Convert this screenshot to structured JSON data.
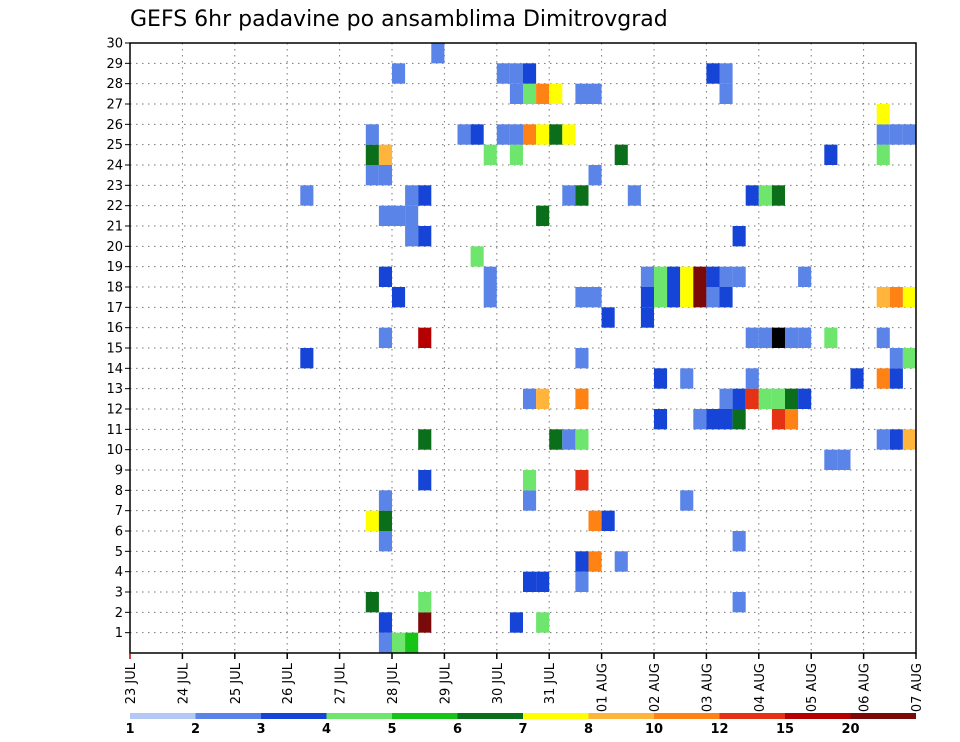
{
  "chart_data": {
    "type": "heatmap",
    "title": "GEFS 6hr padavine po ansamblima Dimitrovgrad",
    "x_tick_labels": [
      "23 JUL",
      "24 JUL",
      "25 JUL",
      "26 JUL",
      "27 JUL",
      "28 JUL",
      "29 JUL",
      "30 JUL",
      "31 JUL",
      "01 AUG",
      "02 AUG",
      "03 AUG",
      "04 AUG",
      "05 AUG",
      "06 AUG",
      "07 AUG"
    ],
    "y_tick_labels": [
      "1",
      "2",
      "3",
      "4",
      "5",
      "6",
      "7",
      "8",
      "9",
      "10",
      "11",
      "12",
      "13",
      "14",
      "15",
      "16",
      "17",
      "18",
      "19",
      "20",
      "21",
      "22",
      "23",
      "24",
      "25",
      "26",
      "27",
      "28",
      "29",
      "30"
    ],
    "x_range_hours": [
      0,
      360
    ],
    "time_step_hours": 6,
    "y_range": [
      0,
      30
    ],
    "grid": true,
    "colorbar": {
      "levels": [
        "1",
        "2",
        "3",
        "4",
        "5",
        "6",
        "7",
        "8",
        "10",
        "12",
        "15",
        "20"
      ],
      "colors": [
        "#b4c8f4",
        "#5a84e8",
        "#1644d6",
        "#6ee66e",
        "#16c416",
        "#0b6e1a",
        "#ffff00",
        "#ffb43c",
        "#ff8214",
        "#e63214",
        "#b40000",
        "#7a0a0a"
      ]
    },
    "cells": [
      [
        114,
        0,
        1
      ],
      [
        120,
        0,
        3
      ],
      [
        126,
        0,
        4
      ],
      [
        114,
        1,
        2
      ],
      [
        132,
        1,
        11
      ],
      [
        174,
        1,
        2
      ],
      [
        186,
        1,
        3
      ],
      [
        108,
        2,
        5
      ],
      [
        132,
        2,
        3
      ],
      [
        276,
        2,
        1
      ],
      [
        180,
        3,
        2
      ],
      [
        186,
        3,
        2
      ],
      [
        204,
        3,
        1
      ],
      [
        204,
        4,
        2
      ],
      [
        210,
        4,
        8
      ],
      [
        222,
        4,
        1
      ],
      [
        114,
        5,
        1
      ],
      [
        276,
        5,
        1
      ],
      [
        108,
        6,
        6
      ],
      [
        114,
        6,
        5
      ],
      [
        210,
        6,
        8
      ],
      [
        216,
        6,
        2
      ],
      [
        114,
        7,
        1
      ],
      [
        180,
        7,
        1
      ],
      [
        252,
        7,
        1
      ],
      [
        132,
        8,
        2
      ],
      [
        180,
        8,
        3
      ],
      [
        204,
        8,
        9
      ],
      [
        318,
        9,
        1
      ],
      [
        324,
        9,
        1
      ],
      [
        132,
        10,
        5
      ],
      [
        192,
        10,
        5
      ],
      [
        198,
        10,
        1
      ],
      [
        204,
        10,
        3
      ],
      [
        342,
        10,
        1
      ],
      [
        348,
        10,
        2
      ],
      [
        354,
        10,
        7
      ],
      [
        240,
        11,
        2
      ],
      [
        258,
        11,
        1
      ],
      [
        264,
        11,
        2
      ],
      [
        270,
        11,
        2
      ],
      [
        276,
        11,
        5
      ],
      [
        294,
        11,
        9
      ],
      [
        300,
        11,
        8
      ],
      [
        180,
        12,
        1
      ],
      [
        186,
        12,
        7
      ],
      [
        204,
        12,
        8
      ],
      [
        270,
        12,
        1
      ],
      [
        276,
        12,
        2
      ],
      [
        282,
        12,
        9
      ],
      [
        288,
        12,
        3
      ],
      [
        294,
        12,
        3
      ],
      [
        300,
        12,
        5
      ],
      [
        306,
        12,
        2
      ],
      [
        240,
        13,
        2
      ],
      [
        252,
        13,
        1
      ],
      [
        282,
        13,
        1
      ],
      [
        330,
        13,
        2
      ],
      [
        342,
        13,
        8
      ],
      [
        348,
        13,
        2
      ],
      [
        78,
        14,
        2
      ],
      [
        204,
        14,
        1
      ],
      [
        348,
        14,
        1
      ],
      [
        354,
        14,
        3
      ],
      [
        114,
        15,
        1
      ],
      [
        132,
        15,
        10
      ],
      [
        282,
        15,
        1
      ],
      [
        288,
        15,
        1
      ],
      [
        294,
        15,
        12
      ],
      [
        300,
        15,
        1
      ],
      [
        306,
        15,
        1
      ],
      [
        318,
        15,
        3
      ],
      [
        342,
        15,
        1
      ],
      [
        216,
        16,
        2
      ],
      [
        234,
        16,
        2
      ],
      [
        120,
        17,
        2
      ],
      [
        162,
        17,
        1
      ],
      [
        204,
        17,
        1
      ],
      [
        210,
        17,
        1
      ],
      [
        234,
        17,
        2
      ],
      [
        240,
        17,
        3
      ],
      [
        246,
        17,
        2
      ],
      [
        252,
        17,
        6
      ],
      [
        258,
        17,
        11
      ],
      [
        264,
        17,
        1
      ],
      [
        270,
        17,
        2
      ],
      [
        342,
        17,
        7
      ],
      [
        348,
        17,
        8
      ],
      [
        354,
        17,
        6
      ],
      [
        114,
        18,
        2
      ],
      [
        162,
        18,
        1
      ],
      [
        234,
        18,
        1
      ],
      [
        240,
        18,
        3
      ],
      [
        246,
        18,
        2
      ],
      [
        252,
        18,
        6
      ],
      [
        258,
        18,
        11
      ],
      [
        264,
        18,
        2
      ],
      [
        270,
        18,
        1
      ],
      [
        276,
        18,
        1
      ],
      [
        306,
        18,
        1
      ],
      [
        156,
        19,
        3
      ],
      [
        126,
        20,
        1
      ],
      [
        132,
        20,
        2
      ],
      [
        276,
        20,
        2
      ],
      [
        114,
        21,
        1
      ],
      [
        120,
        21,
        1
      ],
      [
        126,
        21,
        1
      ],
      [
        186,
        21,
        5
      ],
      [
        78,
        22,
        1
      ],
      [
        126,
        22,
        1
      ],
      [
        132,
        22,
        2
      ],
      [
        198,
        22,
        1
      ],
      [
        204,
        22,
        5
      ],
      [
        228,
        22,
        1
      ],
      [
        282,
        22,
        2
      ],
      [
        288,
        22,
        3
      ],
      [
        294,
        22,
        5
      ],
      [
        108,
        23,
        1
      ],
      [
        114,
        23,
        1
      ],
      [
        210,
        23,
        1
      ],
      [
        108,
        24,
        5
      ],
      [
        114,
        24,
        7
      ],
      [
        162,
        24,
        3
      ],
      [
        174,
        24,
        3
      ],
      [
        222,
        24,
        5
      ],
      [
        318,
        24,
        2
      ],
      [
        342,
        24,
        3
      ],
      [
        108,
        25,
        1
      ],
      [
        150,
        25,
        1
      ],
      [
        156,
        25,
        2
      ],
      [
        168,
        25,
        1
      ],
      [
        174,
        25,
        1
      ],
      [
        180,
        25,
        8
      ],
      [
        186,
        25,
        6
      ],
      [
        192,
        25,
        5
      ],
      [
        198,
        25,
        6
      ],
      [
        342,
        25,
        1
      ],
      [
        348,
        25,
        1
      ],
      [
        354,
        25,
        1
      ],
      [
        342,
        26,
        6
      ],
      [
        174,
        27,
        1
      ],
      [
        180,
        27,
        3
      ],
      [
        186,
        27,
        8
      ],
      [
        192,
        27,
        6
      ],
      [
        204,
        27,
        1
      ],
      [
        210,
        27,
        1
      ],
      [
        270,
        27,
        1
      ],
      [
        120,
        28,
        1
      ],
      [
        168,
        28,
        1
      ],
      [
        174,
        28,
        1
      ],
      [
        180,
        28,
        2
      ],
      [
        264,
        28,
        2
      ],
      [
        270,
        28,
        1
      ],
      [
        138,
        29,
        1
      ]
    ]
  }
}
